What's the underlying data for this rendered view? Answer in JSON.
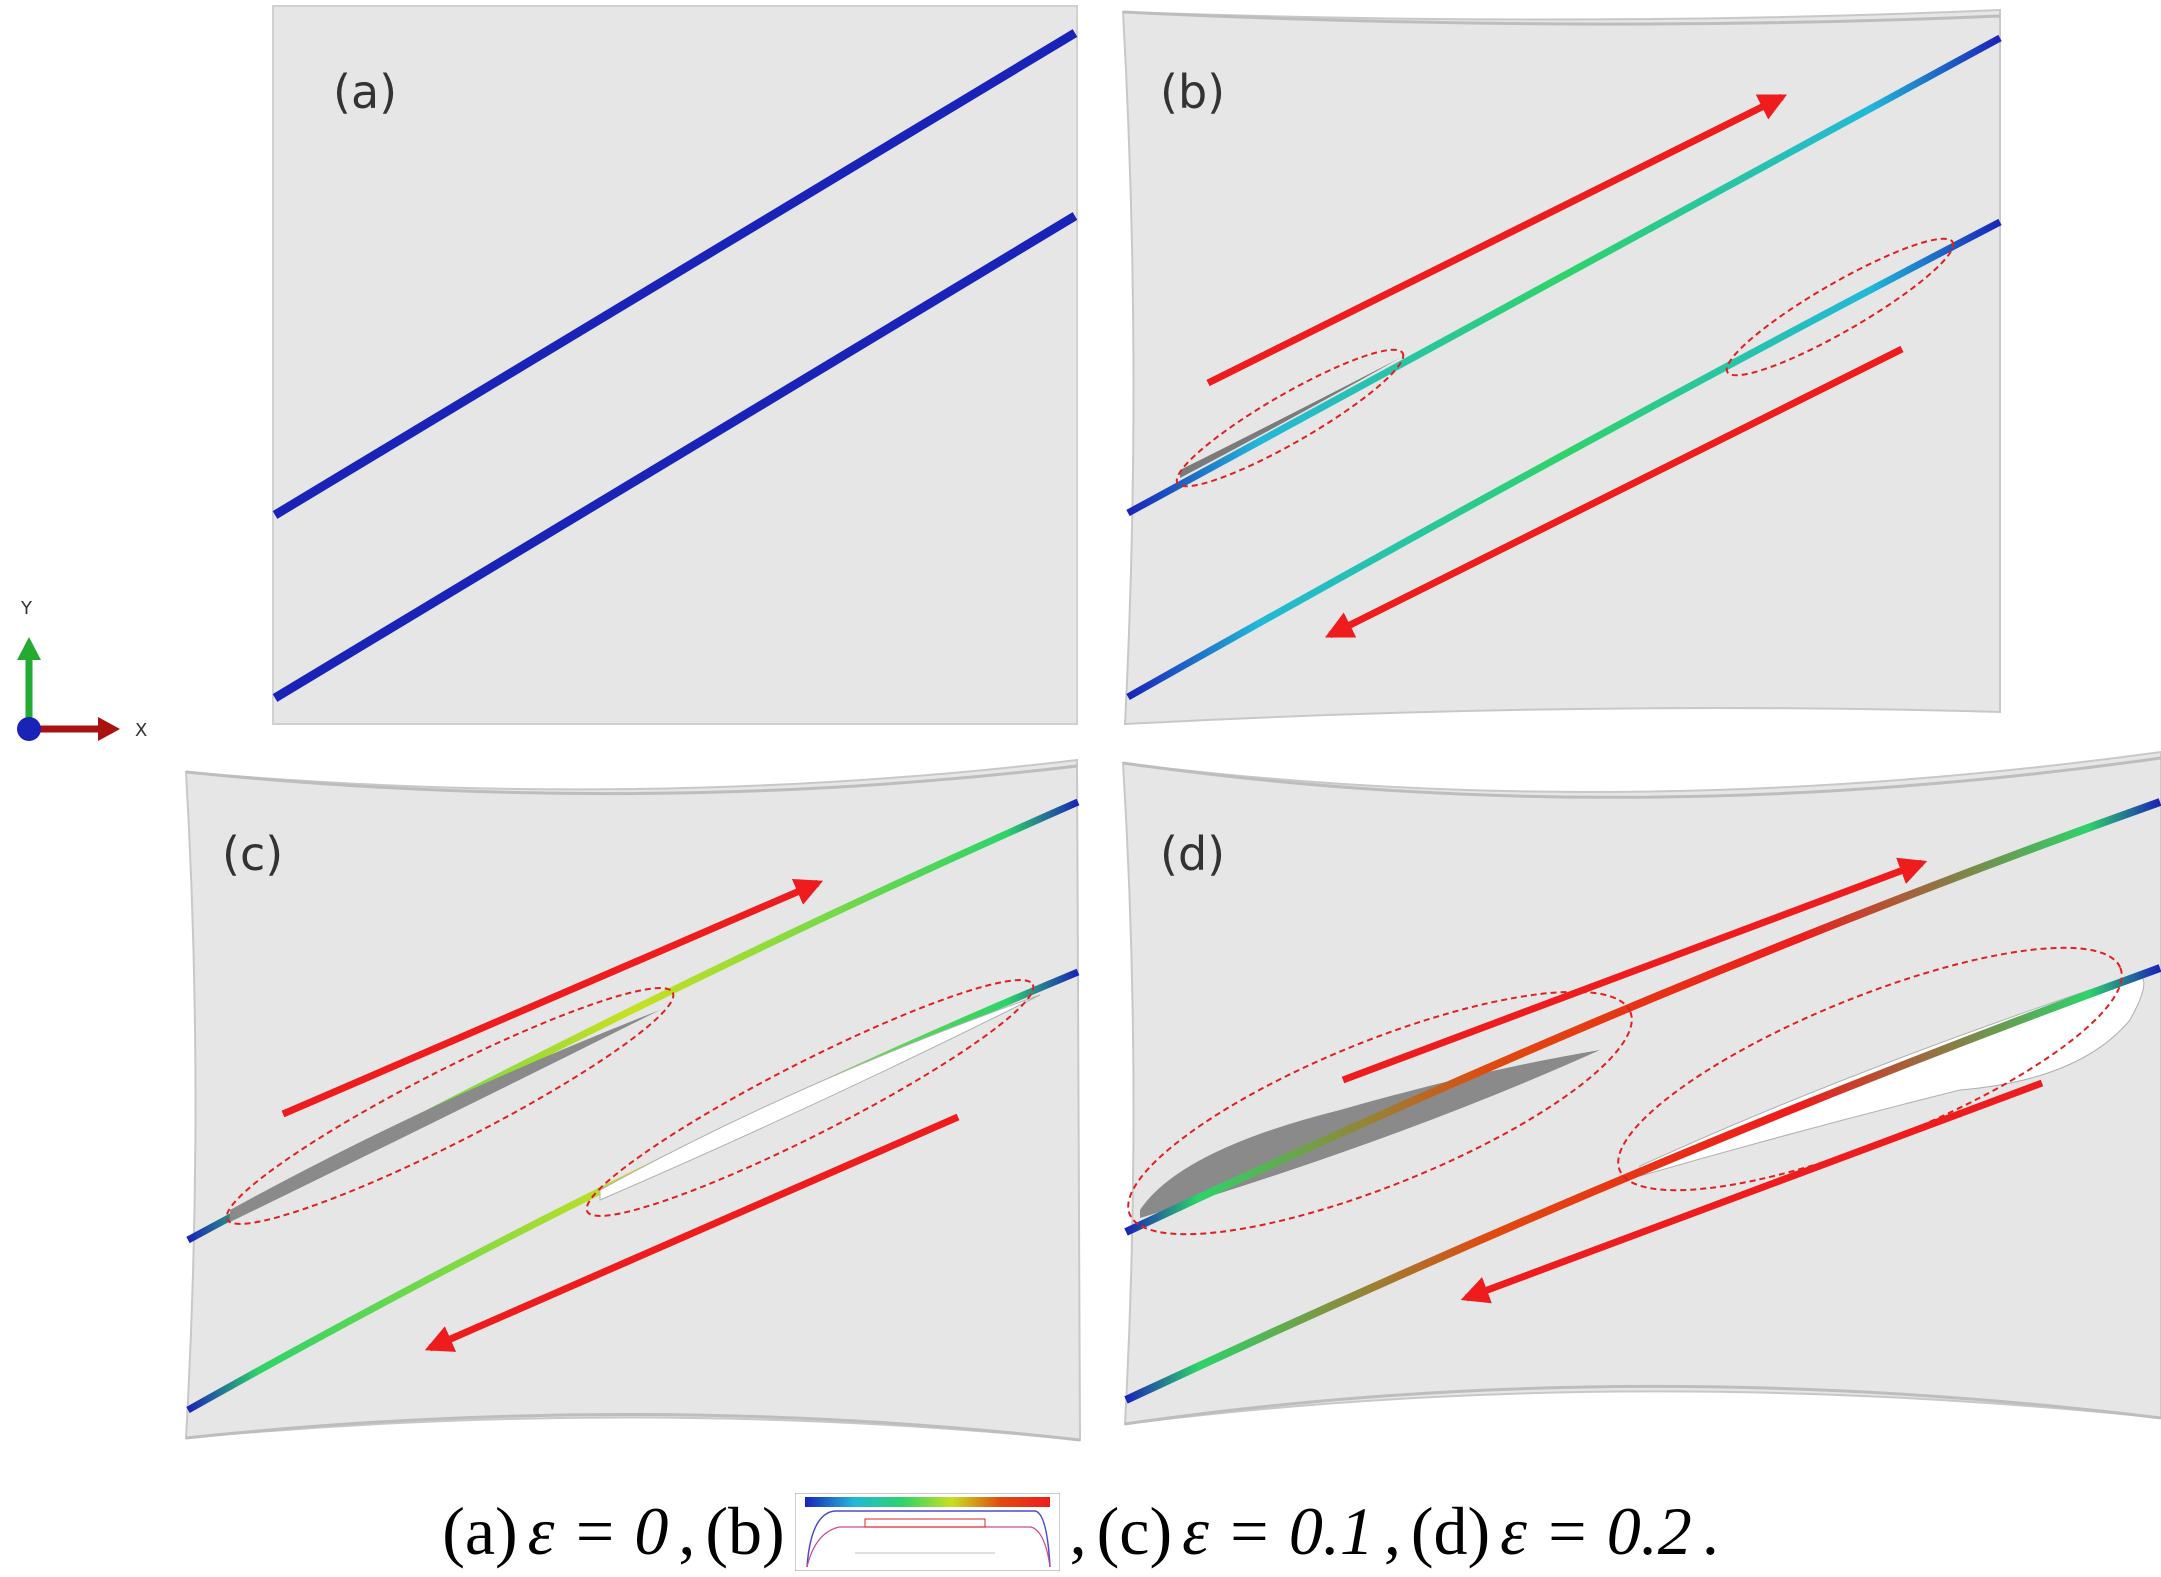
{
  "figure": {
    "panels": [
      {
        "id": "a",
        "label": "(a)",
        "strain": "0"
      },
      {
        "id": "b",
        "label": "(b)",
        "strain": ""
      },
      {
        "id": "c",
        "label": "(c)",
        "strain": "0.1"
      },
      {
        "id": "d",
        "label": "(d)",
        "strain": "0.2"
      }
    ],
    "axis_triad": {
      "y_label": "Y",
      "x_label": "X"
    },
    "colors": {
      "background": "#e6e6e6",
      "band_blue": "#1a23b8",
      "arrow": "#ee1c1c",
      "highlight_ellipse": "#e02020",
      "contour": [
        "#1a23b8",
        "#22b8d8",
        "#2ed36a",
        "#c8e020",
        "#ee1c1c"
      ]
    }
  },
  "caption": {
    "a": "(a)",
    "eps_a": "ε = 0",
    "sep1": ",",
    "b": "(b)",
    "sep2": ",",
    "c": "(c)",
    "eps_c": "ε = 0.1",
    "sep3": ",",
    "d": "(d)",
    "eps_d": "ε = 0.2",
    "end": "."
  }
}
